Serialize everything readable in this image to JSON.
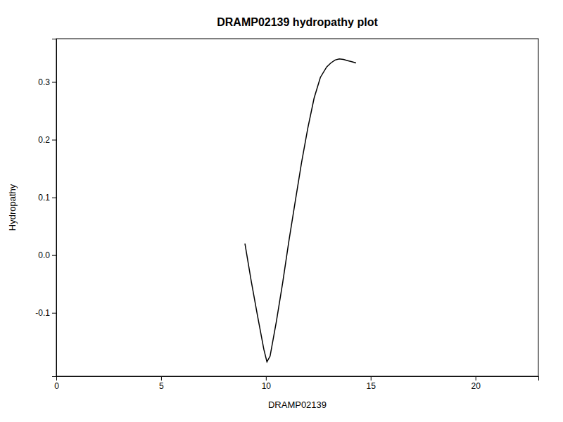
{
  "chart_data": {
    "type": "line",
    "title": "DRAMP02139 hydropathy plot",
    "xlabel": "DRAMP02139",
    "ylabel": "Hydropathy",
    "xlim": [
      0,
      23
    ],
    "ylim": [
      -0.21,
      0.375
    ],
    "xticks": [
      0,
      5,
      10,
      15,
      20
    ],
    "yticks": [
      -0.1,
      {
        "value": 0.0,
        "label": "0.0"
      },
      0.1,
      0.2,
      0.3
    ],
    "grid": false,
    "color": "#000000",
    "x": [
      9.0,
      9.3,
      9.6,
      9.9,
      10.05,
      10.2,
      10.5,
      10.8,
      11.1,
      11.4,
      11.7,
      12.0,
      12.3,
      12.6,
      12.9,
      13.1,
      13.3,
      13.5,
      13.7,
      13.9,
      14.1,
      14.3
    ],
    "values": [
      0.02,
      -0.045,
      -0.105,
      -0.163,
      -0.185,
      -0.175,
      -0.115,
      -0.048,
      0.025,
      0.093,
      0.16,
      0.22,
      0.272,
      0.308,
      0.326,
      0.333,
      0.338,
      0.34,
      0.339,
      0.337,
      0.335,
      0.333
    ]
  }
}
